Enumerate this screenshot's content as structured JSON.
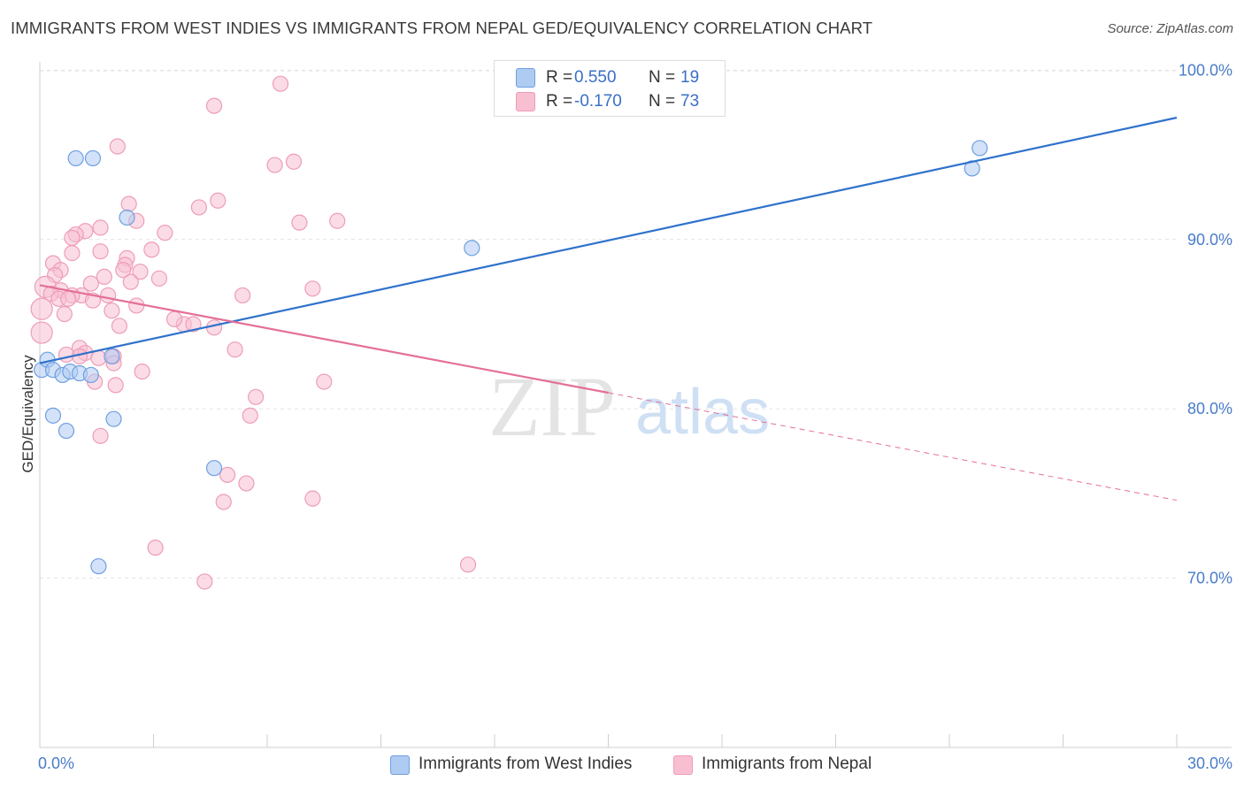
{
  "title": "IMMIGRANTS FROM WEST INDIES VS IMMIGRANTS FROM NEPAL GED/EQUIVALENCY CORRELATION CHART",
  "source": "Source: ZipAtlas.com",
  "watermark": {
    "zip": "ZIP",
    "atlas": "atlas"
  },
  "legend": {
    "r_label": "R =",
    "n_label": "N =",
    "series": [
      {
        "name": "Immigrants from West Indies",
        "r": "0.550",
        "n": "19",
        "fill": "#aecbf2",
        "stroke": "#6f9fe0"
      },
      {
        "name": "Immigrants from Nepal",
        "r": "-0.170",
        "n": "73",
        "fill": "#f8bfd1",
        "stroke": "#ee9cb8"
      }
    ]
  },
  "chart_data": {
    "type": "scatter",
    "title": "IMMIGRANTS FROM WEST INDIES VS IMMIGRANTS FROM NEPAL GED/EQUIVALENCY CORRELATION CHART",
    "xlabel": "",
    "ylabel": "GED/Equivalency",
    "xlim": [
      0,
      30
    ],
    "ylim": [
      60,
      102
    ],
    "x_tick_labels": [
      "0.0%",
      "30.0%"
    ],
    "y_ticks": [
      70,
      80,
      90,
      100
    ],
    "y_tick_labels": [
      "70.0%",
      "80.0%",
      "90.0%",
      "100.0%"
    ],
    "grid": true,
    "series": [
      {
        "name": "Immigrants from West Indies",
        "color": "#6f9fe0",
        "fill": "#aecbf2",
        "line_color": "#2f72cc",
        "trend": {
          "x0": 0,
          "y0": 82.7,
          "x1": 30,
          "y1": 97.2,
          "dashed_from": null
        },
        "points": [
          [
            0.05,
            82.3
          ],
          [
            0.2,
            82.9
          ],
          [
            0.35,
            82.3
          ],
          [
            0.6,
            82.0
          ],
          [
            0.8,
            82.2
          ],
          [
            1.05,
            82.1
          ],
          [
            1.35,
            82.0
          ],
          [
            1.9,
            83.1
          ],
          [
            0.35,
            79.6
          ],
          [
            0.7,
            78.7
          ],
          [
            1.95,
            79.4
          ],
          [
            0.95,
            94.8
          ],
          [
            1.4,
            94.8
          ],
          [
            2.3,
            91.3
          ],
          [
            11.4,
            89.5
          ],
          [
            4.6,
            76.5
          ],
          [
            1.55,
            70.7
          ],
          [
            24.8,
            95.4
          ],
          [
            24.6,
            94.2
          ]
        ]
      },
      {
        "name": "Immigrants from Nepal",
        "color": "#ee9cb8",
        "fill": "#f8bfd1",
        "line_color": "#e46f98",
        "trend": {
          "x0": 0,
          "y0": 87.3,
          "x1": 30,
          "y1": 74.6,
          "dashed_from": 15.0
        },
        "points": [
          [
            6.35,
            99.2
          ],
          [
            4.6,
            97.9
          ],
          [
            2.05,
            95.5
          ],
          [
            6.2,
            94.4
          ],
          [
            6.7,
            94.6
          ],
          [
            2.35,
            92.1
          ],
          [
            4.7,
            92.3
          ],
          [
            4.2,
            91.9
          ],
          [
            6.85,
            91.0
          ],
          [
            7.85,
            91.1
          ],
          [
            2.55,
            91.1
          ],
          [
            1.6,
            90.7
          ],
          [
            1.2,
            90.5
          ],
          [
            0.95,
            90.3
          ],
          [
            3.3,
            90.4
          ],
          [
            0.85,
            90.1
          ],
          [
            2.95,
            89.4
          ],
          [
            0.85,
            89.2
          ],
          [
            1.6,
            89.3
          ],
          [
            2.3,
            88.9
          ],
          [
            0.35,
            88.6
          ],
          [
            0.55,
            88.2
          ],
          [
            2.25,
            88.5
          ],
          [
            2.65,
            88.1
          ],
          [
            2.2,
            88.2
          ],
          [
            0.4,
            87.9
          ],
          [
            1.7,
            87.8
          ],
          [
            3.15,
            87.7
          ],
          [
            2.4,
            87.5
          ],
          [
            1.35,
            87.4
          ],
          [
            0.15,
            87.2
          ],
          [
            0.55,
            87.0
          ],
          [
            0.3,
            86.8
          ],
          [
            1.1,
            86.7
          ],
          [
            0.85,
            86.7
          ],
          [
            1.8,
            86.7
          ],
          [
            5.35,
            86.7
          ],
          [
            7.2,
            87.1
          ],
          [
            0.5,
            86.5
          ],
          [
            0.75,
            86.5
          ],
          [
            1.4,
            86.4
          ],
          [
            2.55,
            86.1
          ],
          [
            0.05,
            85.9
          ],
          [
            1.9,
            85.8
          ],
          [
            0.65,
            85.6
          ],
          [
            3.8,
            85.0
          ],
          [
            4.05,
            85.0
          ],
          [
            4.6,
            84.8
          ],
          [
            2.1,
            84.9
          ],
          [
            0.05,
            84.5
          ],
          [
            1.05,
            83.6
          ],
          [
            1.2,
            83.3
          ],
          [
            0.7,
            83.2
          ],
          [
            1.05,
            83.1
          ],
          [
            1.55,
            83.0
          ],
          [
            1.95,
            83.1
          ],
          [
            1.95,
            82.7
          ],
          [
            2.7,
            82.2
          ],
          [
            1.45,
            81.6
          ],
          [
            2.0,
            81.4
          ],
          [
            5.7,
            80.7
          ],
          [
            5.55,
            79.6
          ],
          [
            1.6,
            78.4
          ],
          [
            4.95,
            76.1
          ],
          [
            5.45,
            75.6
          ],
          [
            4.85,
            74.5
          ],
          [
            7.2,
            74.7
          ],
          [
            3.05,
            71.8
          ],
          [
            11.3,
            70.8
          ],
          [
            4.35,
            69.8
          ],
          [
            7.5,
            81.6
          ],
          [
            3.55,
            85.3
          ],
          [
            5.15,
            83.5
          ]
        ]
      }
    ]
  }
}
